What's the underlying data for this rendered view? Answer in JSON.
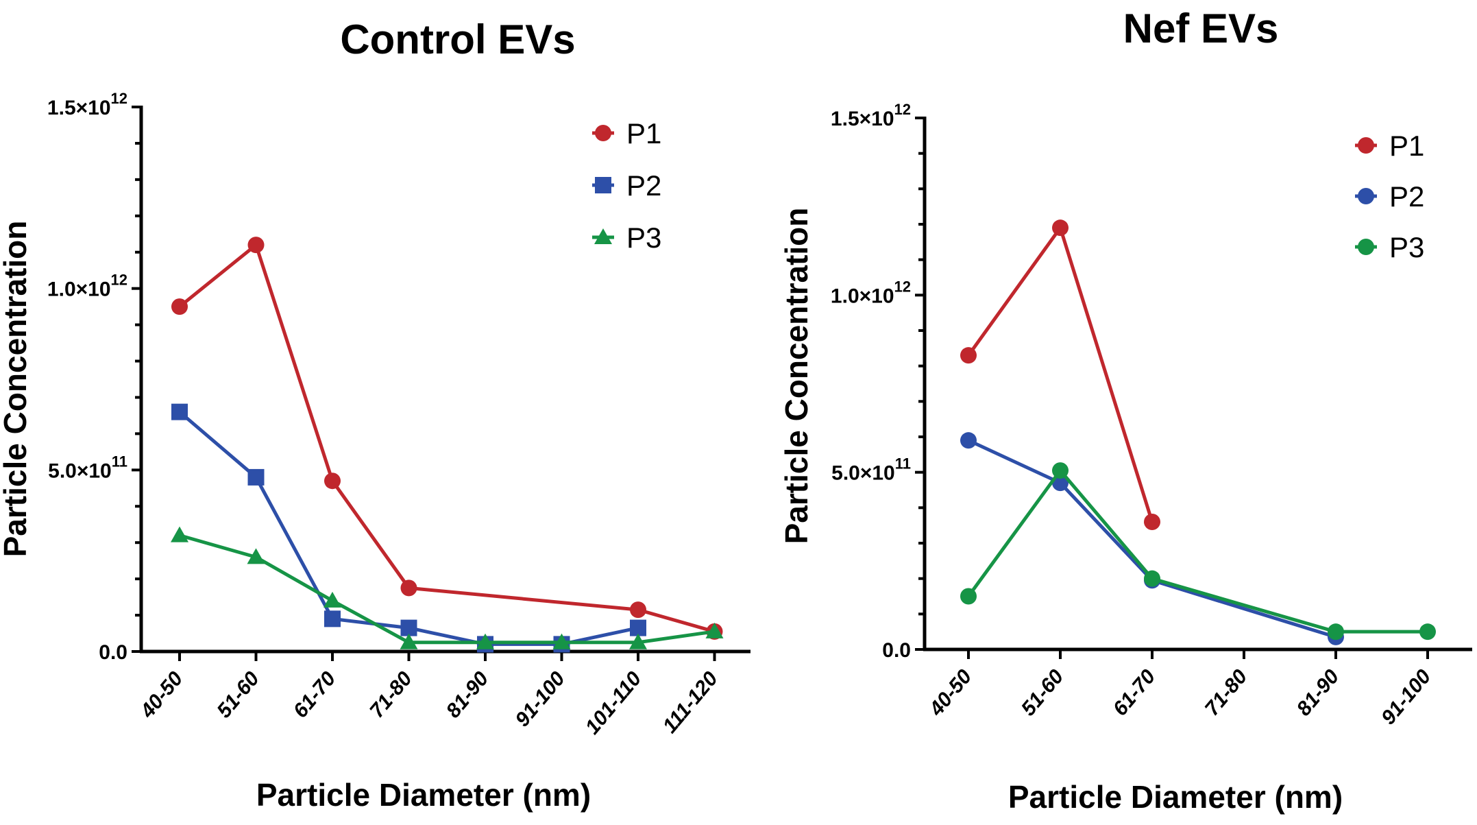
{
  "chart_data": [
    {
      "type": "line",
      "title": "Control EVs",
      "xlabel": "Particle Diameter (nm)",
      "ylabel": "Particle Concentration",
      "categories": [
        "40-50",
        "51-60",
        "61-70",
        "71-80",
        "81-90",
        "91-100",
        "101-110",
        "111-120"
      ],
      "ylim": [
        0,
        1500000000000.0
      ],
      "yticks": [
        {
          "value": 0,
          "mantissa": "0.0",
          "exp": ""
        },
        {
          "value": 500000000000.0,
          "mantissa": "5.0×10",
          "exp": "11"
        },
        {
          "value": 1000000000000.0,
          "mantissa": "1.0×10",
          "exp": "12"
        },
        {
          "value": 1500000000000.0,
          "mantissa": "1.5×10",
          "exp": "12"
        }
      ],
      "legend_position": "top-right",
      "series": [
        {
          "name": "P1",
          "color": "#c0272d",
          "marker": "circle",
          "values": [
            950000000000.0,
            1120000000000.0,
            470000000000.0,
            175000000000.0,
            null,
            null,
            115000000000.0,
            55000000000.0
          ]
        },
        {
          "name": "P2",
          "color": "#2d4fa8",
          "marker": "square",
          "values": [
            660000000000.0,
            480000000000.0,
            90000000000.0,
            65000000000.0,
            20000000000.0,
            20000000000.0,
            65000000000.0,
            null
          ]
        },
        {
          "name": "P3",
          "color": "#169446",
          "marker": "triangle",
          "values": [
            320000000000.0,
            260000000000.0,
            140000000000.0,
            25000000000.0,
            25000000000.0,
            25000000000.0,
            25000000000.0,
            55000000000.0
          ]
        }
      ]
    },
    {
      "type": "line",
      "title": "Nef EVs",
      "xlabel": "Particle Diameter (nm)",
      "ylabel": "Particle Concentration",
      "categories": [
        "40-50",
        "51-60",
        "61-70",
        "71-80",
        "81-90",
        "91-100"
      ],
      "ylim": [
        0,
        1500000000000.0
      ],
      "yticks": [
        {
          "value": 0,
          "mantissa": "0.0",
          "exp": ""
        },
        {
          "value": 500000000000.0,
          "mantissa": "5.0×10",
          "exp": "11"
        },
        {
          "value": 1000000000000.0,
          "mantissa": "1.0×10",
          "exp": "12"
        },
        {
          "value": 1500000000000.0,
          "mantissa": "1.5×10",
          "exp": "12"
        }
      ],
      "legend_position": "top-right",
      "series": [
        {
          "name": "P1",
          "color": "#c0272d",
          "marker": "circle",
          "values": [
            830000000000.0,
            1190000000000.0,
            360000000000.0,
            null,
            null,
            null
          ]
        },
        {
          "name": "P2",
          "color": "#2d4fa8",
          "marker": "circle",
          "values": [
            590000000000.0,
            470000000000.0,
            195000000000.0,
            null,
            35000000000.0,
            null
          ]
        },
        {
          "name": "P3",
          "color": "#169446",
          "marker": "circle",
          "values": [
            150000000000.0,
            505000000000.0,
            200000000000.0,
            null,
            50000000000.0,
            50000000000.0
          ]
        }
      ]
    }
  ]
}
